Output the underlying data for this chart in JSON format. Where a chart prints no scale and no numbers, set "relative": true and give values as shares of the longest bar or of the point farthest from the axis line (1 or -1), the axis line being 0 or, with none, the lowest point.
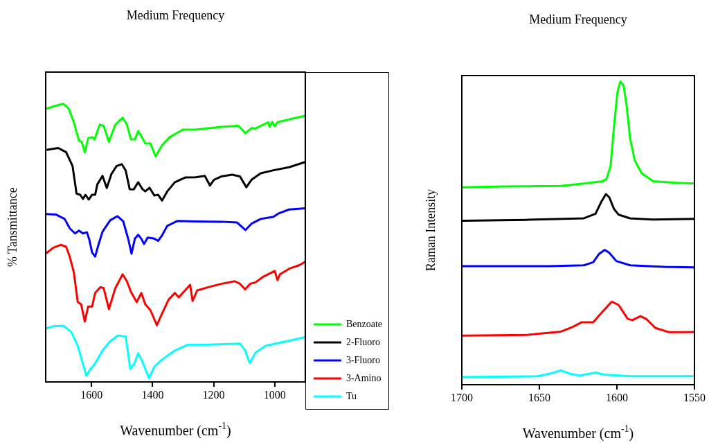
{
  "chart_data": [
    {
      "type": "line",
      "title": "Medium Frequency",
      "xlabel": "Wavenumber (cm$^{-1}$)",
      "ylabel": "% Tansmittance",
      "relative": true,
      "xlim": [
        1750,
        900
      ],
      "xticks": [
        1600,
        1400,
        1200,
        1000
      ],
      "legend": "right",
      "marker": "none",
      "series": [
        {
          "name": "Benzoate",
          "color": "#00ff00",
          "x": [
            1750,
            1717,
            1692,
            1675,
            1658,
            1641,
            1632,
            1622,
            1611,
            1598,
            1590,
            1573,
            1560,
            1543,
            1522,
            1498,
            1484,
            1471,
            1458,
            1447,
            1437,
            1424,
            1407,
            1390,
            1369,
            1344,
            1301,
            1259,
            1174,
            1119,
            1096,
            1076,
            1063,
            1021,
            1017,
            1008,
            1000,
            991,
            953,
            900
          ],
          "values": [
            0.982,
            0.993,
            1.0,
            0.983,
            0.934,
            0.867,
            0.863,
            0.826,
            0.876,
            0.88,
            0.872,
            0.925,
            0.921,
            0.863,
            0.925,
            0.95,
            0.925,
            0.872,
            0.872,
            0.902,
            0.884,
            0.857,
            0.857,
            0.811,
            0.851,
            0.88,
            0.907,
            0.907,
            0.917,
            0.921,
            0.894,
            0.913,
            0.911,
            0.934,
            0.917,
            0.935,
            0.919,
            0.934,
            0.944,
            0.957
          ]
        },
        {
          "name": "2-Fluoro",
          "color": "#000000",
          "x": [
            1747,
            1709,
            1683,
            1662,
            1649,
            1637,
            1628,
            1620,
            1609,
            1598,
            1588,
            1581,
            1564,
            1550,
            1535,
            1518,
            1501,
            1488,
            1475,
            1462,
            1447,
            1433,
            1424,
            1410,
            1394,
            1382,
            1369,
            1352,
            1327,
            1293,
            1259,
            1229,
            1212,
            1199,
            1174,
            1140,
            1114,
            1093,
            1076,
            1046,
            1004,
            953,
            900
          ],
          "values": [
            0.834,
            0.841,
            0.826,
            0.776,
            0.677,
            0.673,
            0.658,
            0.673,
            0.656,
            0.673,
            0.673,
            0.71,
            0.741,
            0.697,
            0.747,
            0.776,
            0.783,
            0.76,
            0.693,
            0.692,
            0.718,
            0.693,
            0.685,
            0.698,
            0.67,
            0.673,
            0.652,
            0.685,
            0.718,
            0.735,
            0.736,
            0.741,
            0.706,
            0.727,
            0.739,
            0.745,
            0.739,
            0.7,
            0.727,
            0.75,
            0.761,
            0.772,
            0.791
          ]
        },
        {
          "name": "3-Fluoro",
          "color": "#0000ff",
          "x": [
            1750,
            1717,
            1688,
            1671,
            1654,
            1641,
            1628,
            1615,
            1607,
            1598,
            1588,
            1577,
            1564,
            1539,
            1515,
            1496,
            1479,
            1469,
            1458,
            1447,
            1437,
            1428,
            1416,
            1394,
            1382,
            1369,
            1352,
            1318,
            1259,
            1174,
            1123,
            1096,
            1076,
            1046,
            1004,
            987,
            953,
            900
          ],
          "values": [
            0.604,
            0.602,
            0.586,
            0.552,
            0.534,
            0.544,
            0.534,
            0.538,
            0.511,
            0.465,
            0.451,
            0.494,
            0.54,
            0.581,
            0.596,
            0.577,
            0.511,
            0.461,
            0.515,
            0.529,
            0.515,
            0.496,
            0.519,
            0.515,
            0.507,
            0.527,
            0.561,
            0.579,
            0.577,
            0.576,
            0.573,
            0.546,
            0.569,
            0.586,
            0.594,
            0.606,
            0.62,
            0.624
          ]
        },
        {
          "name": "3-Amino",
          "color": "#ff0000",
          "x": [
            1750,
            1726,
            1700,
            1683,
            1671,
            1658,
            1645,
            1634,
            1622,
            1611,
            1598,
            1588,
            1571,
            1560,
            1543,
            1522,
            1498,
            1484,
            1471,
            1452,
            1437,
            1424,
            1407,
            1386,
            1369,
            1348,
            1327,
            1314,
            1301,
            1277,
            1269,
            1254,
            1216,
            1174,
            1131,
            1114,
            1097,
            1080,
            1063,
            1038,
            1000,
            991,
            983,
            953,
            919,
            900
          ],
          "values": [
            0.461,
            0.482,
            0.493,
            0.486,
            0.449,
            0.395,
            0.287,
            0.279,
            0.217,
            0.271,
            0.271,
            0.32,
            0.341,
            0.337,
            0.262,
            0.337,
            0.387,
            0.362,
            0.324,
            0.287,
            0.32,
            0.279,
            0.258,
            0.204,
            0.246,
            0.295,
            0.32,
            0.304,
            0.32,
            0.349,
            0.291,
            0.329,
            0.341,
            0.353,
            0.362,
            0.353,
            0.333,
            0.353,
            0.358,
            0.378,
            0.399,
            0.366,
            0.387,
            0.407,
            0.42,
            0.432
          ]
        },
        {
          "name": "Tu",
          "color": "#00ffff",
          "x": [
            1750,
            1726,
            1692,
            1666,
            1645,
            1632,
            1617,
            1603,
            1590,
            1564,
            1539,
            1513,
            1488,
            1473,
            1461,
            1447,
            1433,
            1412,
            1394,
            1369,
            1327,
            1284,
            1216,
            1114,
            1097,
            1082,
            1063,
            1029,
            978,
            900
          ],
          "values": [
            0.192,
            0.2,
            0.202,
            0.179,
            0.13,
            0.08,
            0.022,
            0.047,
            0.063,
            0.113,
            0.146,
            0.167,
            0.163,
            0.047,
            0.063,
            0.103,
            0.072,
            0.014,
            0.055,
            0.08,
            0.113,
            0.134,
            0.134,
            0.138,
            0.113,
            0.068,
            0.105,
            0.13,
            0.142,
            0.161
          ]
        }
      ]
    },
    {
      "type": "line",
      "title": "Medium Frequency",
      "xlabel": "Wavenumber (cm$^{-1}$)",
      "ylabel": "Raman Intensity",
      "relative": true,
      "xlim": [
        1700,
        1550
      ],
      "xticks": [
        1700,
        1650,
        1600,
        1550
      ],
      "marker": "none",
      "series": [
        {
          "color": "#00ff00",
          "x": [
            1700,
            1673.3,
            1636.1,
            1621.3,
            1609.3,
            1606.7,
            1604.1,
            1601.9,
            1599.7,
            1597.8,
            1595.7,
            1593.7,
            1591.5,
            1588.5,
            1584.1,
            1576.6,
            1561.7,
            1550
          ],
          "values": [
            0.651,
            0.654,
            0.656,
            0.664,
            0.671,
            0.679,
            0.721,
            0.85,
            0.965,
            1.0,
            0.988,
            0.919,
            0.812,
            0.74,
            0.698,
            0.671,
            0.666,
            0.664
          ]
        },
        {
          "color": "#000000",
          "x": [
            1700,
            1658.5,
            1621.3,
            1613.8,
            1610.1,
            1607.1,
            1604.9,
            1601.9,
            1598.9,
            1591.5,
            1576.6,
            1550
          ],
          "values": [
            0.541,
            0.544,
            0.549,
            0.564,
            0.603,
            0.629,
            0.618,
            0.58,
            0.561,
            0.549,
            0.545,
            0.547
          ]
        },
        {
          "color": "#0000ff",
          "x": [
            1700,
            1643.6,
            1621.3,
            1615.3,
            1611.6,
            1607.9,
            1604.9,
            1600.4,
            1591.5,
            1569.2,
            1550
          ],
          "values": [
            0.391,
            0.391,
            0.394,
            0.404,
            0.431,
            0.445,
            0.435,
            0.408,
            0.394,
            0.389,
            0.387
          ]
        },
        {
          "color": "#ff0000",
          "x": [
            1700,
            1658.5,
            1636.1,
            1628.7,
            1622.7,
            1615.3,
            1610.8,
            1603.4,
            1598.9,
            1593.0,
            1590.0,
            1584.8,
            1581.1,
            1575.1,
            1566.2,
            1550
          ],
          "values": [
            0.162,
            0.164,
            0.175,
            0.19,
            0.206,
            0.206,
            0.232,
            0.274,
            0.263,
            0.217,
            0.213,
            0.226,
            0.217,
            0.187,
            0.173,
            0.174
          ]
        },
        {
          "color": "#00ffff",
          "x": [
            1700,
            1651,
            1642.1,
            1636.1,
            1630.2,
            1624.2,
            1613.8,
            1607.9,
            1591.5,
            1550
          ],
          "values": [
            0.025,
            0.028,
            0.038,
            0.047,
            0.036,
            0.03,
            0.04,
            0.033,
            0.028,
            0.028
          ]
        }
      ]
    }
  ]
}
